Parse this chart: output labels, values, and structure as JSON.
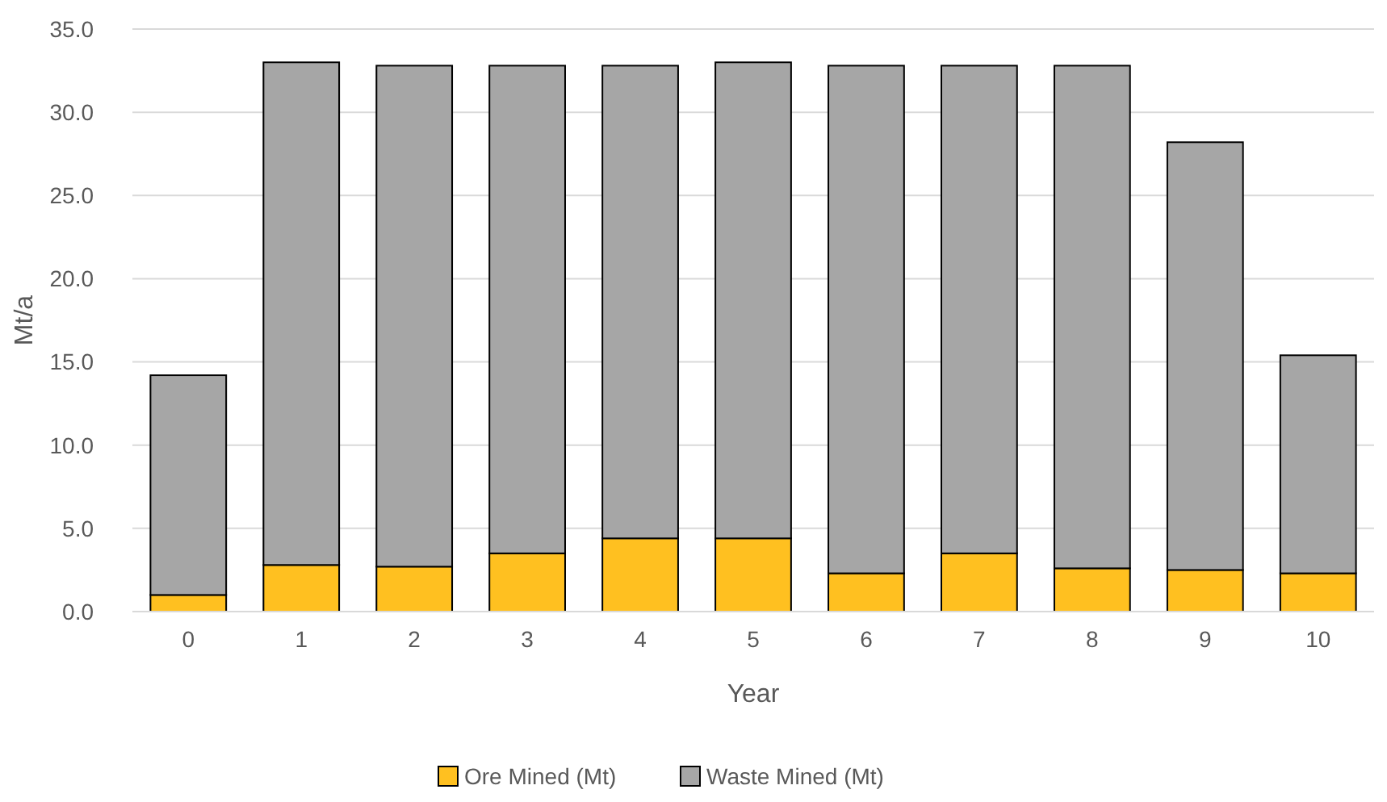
{
  "chart_data": {
    "type": "bar",
    "stacked": true,
    "xlabel": "Year",
    "ylabel": "Mt/a",
    "categories": [
      "0",
      "1",
      "2",
      "3",
      "4",
      "5",
      "6",
      "7",
      "8",
      "9",
      "10"
    ],
    "series": [
      {
        "name": "Ore Mined (Mt)",
        "color": "#ffc020",
        "values": [
          1.0,
          2.8,
          2.7,
          3.5,
          4.4,
          4.4,
          2.3,
          3.5,
          2.6,
          2.5,
          2.3
        ]
      },
      {
        "name": "Waste Mined (Mt)",
        "color": "#a6a6a6",
        "values": [
          13.2,
          30.2,
          30.1,
          29.3,
          28.4,
          28.6,
          30.5,
          29.3,
          30.2,
          25.7,
          13.1
        ]
      }
    ],
    "ylim": [
      0,
      35
    ],
    "yticks": [
      {
        "value": 0,
        "label": "0.0"
      },
      {
        "value": 5,
        "label": "5.0"
      },
      {
        "value": 10,
        "label": "10.0"
      },
      {
        "value": 15,
        "label": "15.0"
      },
      {
        "value": 20,
        "label": "20.0"
      },
      {
        "value": 25,
        "label": "25.0"
      },
      {
        "value": 30,
        "label": "30.0"
      },
      {
        "value": 35,
        "label": "35.0"
      }
    ],
    "grid": "y",
    "legend": "bottom"
  }
}
